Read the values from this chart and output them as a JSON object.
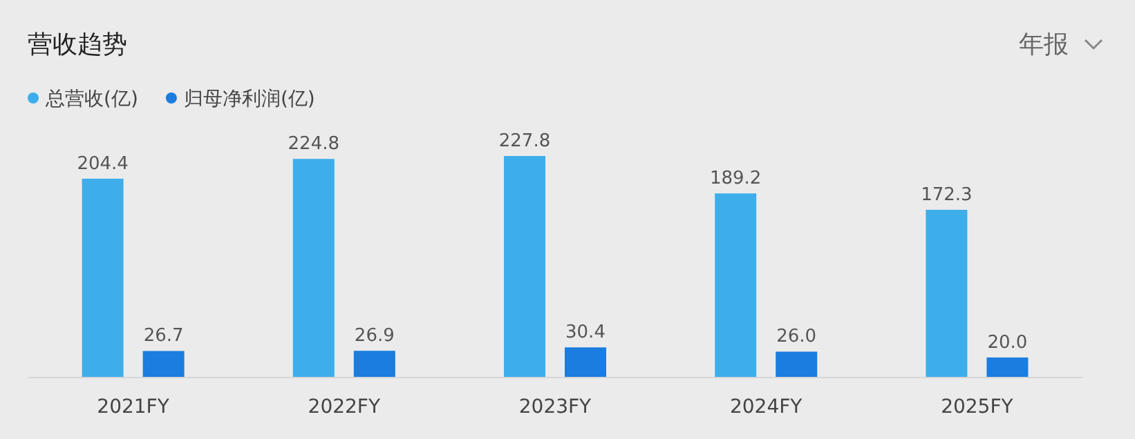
{
  "chart_data": {
    "type": "bar",
    "title": "营收趋势",
    "annotations": [
      "年报"
    ],
    "legend": "top left",
    "categories": [
      "2021FY",
      "2022FY",
      "2023FY",
      "2024FY",
      "2025FY"
    ],
    "series": [
      {
        "name": "总营收(亿)",
        "color": "#3daeea",
        "values": [
          204.4,
          224.8,
          227.8,
          189.2,
          172.3
        ],
        "value_labels": [
          "204.4",
          "224.8",
          "227.8",
          "189.2",
          "172.3"
        ]
      },
      {
        "name": "归母净利润(亿)",
        "color": "#1a7ddf",
        "values": [
          26.7,
          26.9,
          30.4,
          26.0,
          20.0
        ],
        "value_labels": [
          "26.7",
          "26.9",
          "30.4",
          "26.0",
          "20.0"
        ]
      }
    ]
  }
}
